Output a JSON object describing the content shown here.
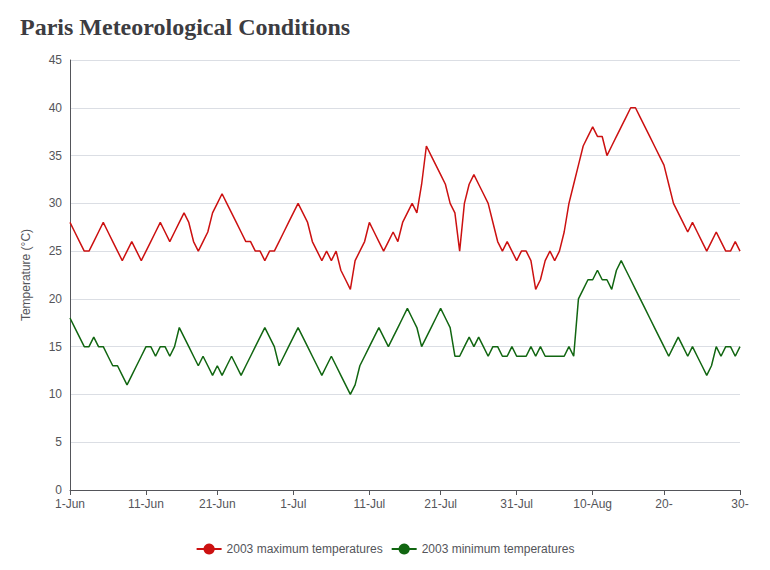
{
  "chart_data": {
    "type": "line",
    "title": "Paris Meteorological Conditions",
    "ylabel": "Temperature (°C)",
    "categories": [
      "1-Jun",
      null,
      null,
      null,
      null,
      null,
      null,
      null,
      null,
      null,
      null,
      null,
      null,
      null,
      null,
      null,
      "11-Jun",
      null,
      null,
      null,
      null,
      null,
      null,
      null,
      null,
      null,
      null,
      null,
      null,
      null,
      null,
      "21-Jun",
      null,
      null,
      null,
      null,
      null,
      null,
      null,
      null,
      null,
      null,
      null,
      null,
      null,
      null,
      null,
      "1-Jul",
      null,
      null,
      null,
      null,
      null,
      null,
      null,
      null,
      null,
      null,
      null,
      null,
      null,
      null,
      null,
      "11-Jul",
      null,
      null,
      null,
      null,
      null,
      null,
      null,
      null,
      null,
      null,
      null,
      null,
      null,
      null,
      "21-Jul",
      null,
      null,
      null,
      null,
      null,
      null,
      null,
      null,
      null,
      null,
      null,
      null,
      null,
      null,
      null,
      "31-Jul",
      null,
      null,
      null,
      null,
      null,
      null,
      null,
      null,
      null,
      null,
      null,
      null,
      null,
      null,
      null,
      "10-Aug",
      null,
      null,
      null,
      null,
      null,
      null,
      null,
      null,
      null,
      null,
      null,
      null,
      null,
      null,
      "20-",
      null,
      null,
      null,
      null,
      null,
      null,
      null,
      null,
      null,
      null,
      null,
      null,
      null,
      null,
      null,
      "30-"
    ],
    "series": [
      {
        "name": "2003 maximum temperatures",
        "color": "#cc1111",
        "values": [
          28,
          27,
          26,
          25,
          25,
          26,
          27,
          28,
          27,
          26,
          25,
          24,
          25,
          26,
          25,
          24,
          25,
          26,
          27,
          28,
          27,
          26,
          27,
          28,
          29,
          28,
          26,
          25,
          26,
          27,
          29,
          30,
          31,
          30,
          29,
          28,
          27,
          26,
          26,
          25,
          25,
          24,
          25,
          25,
          26,
          27,
          28,
          29,
          30,
          29,
          28,
          26,
          25,
          24,
          25,
          24,
          25,
          23,
          22,
          21,
          24,
          25,
          26,
          28,
          27,
          26,
          25,
          26,
          27,
          26,
          28,
          29,
          30,
          29,
          32,
          36,
          35,
          34,
          33,
          32,
          30,
          29,
          25,
          30,
          32,
          33,
          32,
          31,
          30,
          28,
          26,
          25,
          26,
          25,
          24,
          25,
          25,
          24,
          21,
          22,
          24,
          25,
          24,
          25,
          27,
          30,
          32,
          34,
          36,
          37,
          38,
          37,
          37,
          35,
          36,
          37,
          38,
          39,
          40,
          40,
          39,
          38,
          37,
          36,
          35,
          34,
          32,
          30,
          29,
          28,
          27,
          28,
          27,
          26,
          25,
          26,
          27,
          26,
          25,
          25,
          26,
          25
        ]
      },
      {
        "name": "2003 minimum temperatures",
        "color": "#116611",
        "values": [
          18,
          17,
          16,
          15,
          15,
          16,
          15,
          15,
          14,
          13,
          13,
          12,
          11,
          12,
          13,
          14,
          15,
          15,
          14,
          15,
          15,
          14,
          15,
          17,
          16,
          15,
          14,
          13,
          14,
          13,
          12,
          13,
          12,
          13,
          14,
          13,
          12,
          13,
          14,
          15,
          16,
          17,
          16,
          15,
          13,
          14,
          15,
          16,
          17,
          16,
          15,
          14,
          13,
          12,
          13,
          14,
          13,
          12,
          11,
          10,
          11,
          13,
          14,
          15,
          16,
          17,
          16,
          15,
          16,
          17,
          18,
          19,
          18,
          17,
          15,
          16,
          17,
          18,
          19,
          18,
          17,
          14,
          14,
          15,
          16,
          15,
          16,
          15,
          14,
          15,
          15,
          14,
          14,
          15,
          14,
          14,
          14,
          15,
          14,
          15,
          14,
          14,
          14,
          14,
          14,
          15,
          14,
          20,
          21,
          22,
          22,
          23,
          22,
          22,
          21,
          23,
          24,
          23,
          22,
          21,
          20,
          19,
          18,
          17,
          16,
          15,
          14,
          15,
          16,
          15,
          14,
          15,
          14,
          13,
          12,
          13,
          15,
          14,
          15,
          15,
          14,
          15
        ]
      }
    ],
    "ylim": [
      0,
      45
    ],
    "yticks": [
      0,
      5,
      10,
      15,
      20,
      25,
      30,
      35,
      40,
      45
    ],
    "grid": true,
    "legend": "bottom"
  }
}
